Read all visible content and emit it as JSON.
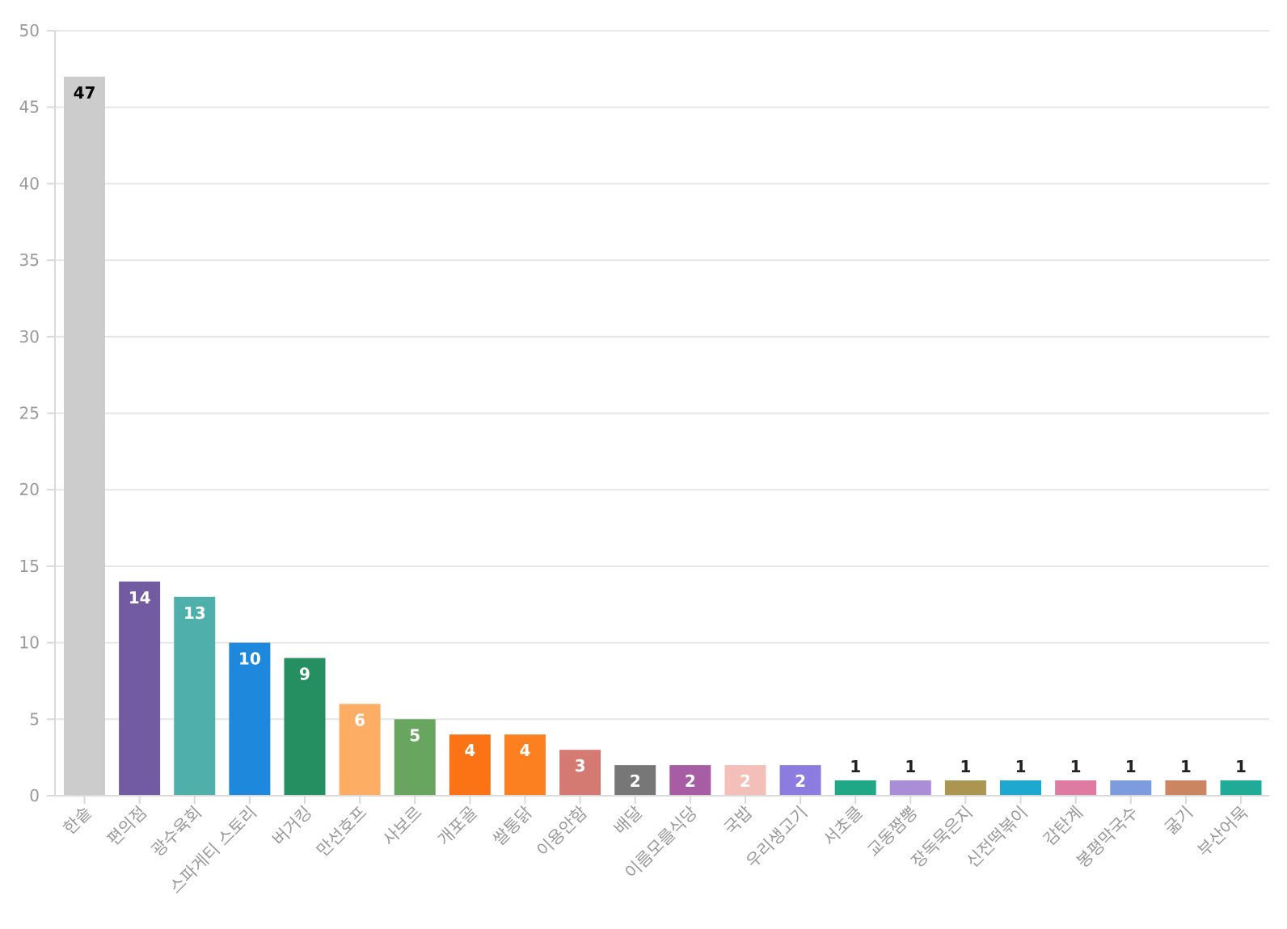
{
  "chart_data": {
    "type": "bar",
    "title": "",
    "xlabel": "",
    "ylabel": "",
    "ylim": [
      0,
      50
    ],
    "yticks": [
      0,
      5,
      10,
      15,
      20,
      25,
      30,
      35,
      40,
      45,
      50
    ],
    "grid": true,
    "legend": "none",
    "categories": [
      "한솥",
      "편의점",
      "광수육회",
      "스파게티 스토리",
      "버거킹",
      "만선호프",
      "사보르",
      "개포골",
      "쌀통닭",
      "이용안함",
      "배달",
      "이름모를식당",
      "국밥",
      "우리생고기",
      "서초클",
      "교동짬뽕",
      "장독묵은지",
      "신전떡볶이",
      "감탄계",
      "봉평막국수",
      "굶기",
      "부산어묵"
    ],
    "values": [
      47,
      14,
      13,
      10,
      9,
      6,
      5,
      4,
      4,
      3,
      2,
      2,
      2,
      2,
      1,
      1,
      1,
      1,
      1,
      1,
      1,
      1
    ],
    "colors": [
      "#cccccc",
      "#725ba0",
      "#4fb0ab",
      "#1e88dc",
      "#268f62",
      "#feae64",
      "#68a65f",
      "#fc7316",
      "#fd8020",
      "#d57a72",
      "#777777",
      "#a65da3",
      "#f3bfb8",
      "#8d7ce0",
      "#1ea886",
      "#a98dd7",
      "#ab9550",
      "#1ea8cf",
      "#df7aa0",
      "#7d9cdf",
      "#cc8561",
      "#1fab98"
    ]
  }
}
